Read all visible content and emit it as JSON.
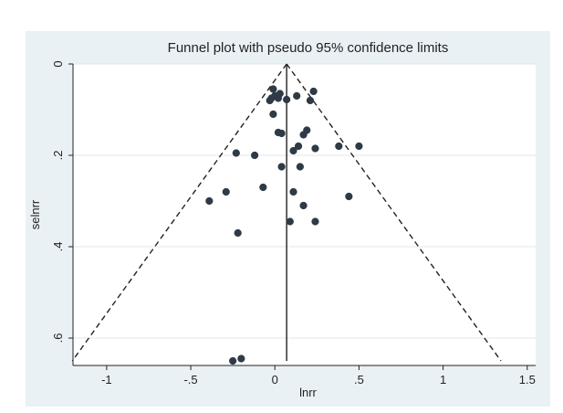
{
  "chart_data": {
    "type": "scatter",
    "title": "Funnel plot with pseudo 95% confidence limits",
    "xlabel": "lnrr",
    "ylabel": "selnrr",
    "xlim": [
      -1.2,
      1.55
    ],
    "ylim": [
      0,
      0.66
    ],
    "y_reversed": true,
    "xticks": [
      -1,
      -0.5,
      0,
      0.5,
      1,
      1.5
    ],
    "xtick_labels": [
      "-1",
      "-.5",
      "0",
      ".5",
      "1",
      "1.5"
    ],
    "yticks": [
      0,
      0.2,
      0.4,
      0.6
    ],
    "ytick_labels": [
      "0",
      ".2",
      ".4",
      ".6"
    ],
    "grid": "horizontal",
    "pooled_effect": 0.07,
    "confidence_level": 0.95,
    "funnel_max_se": 0.65,
    "points": [
      {
        "x": 0.23,
        "y": 0.06
      },
      {
        "x": -0.01,
        "y": 0.055
      },
      {
        "x": 0.03,
        "y": 0.065
      },
      {
        "x": 0.0,
        "y": 0.07
      },
      {
        "x": -0.02,
        "y": 0.075
      },
      {
        "x": -0.03,
        "y": 0.08
      },
      {
        "x": 0.02,
        "y": 0.075
      },
      {
        "x": 0.07,
        "y": 0.078
      },
      {
        "x": 0.13,
        "y": 0.07
      },
      {
        "x": 0.21,
        "y": 0.08
      },
      {
        "x": -0.01,
        "y": 0.11
      },
      {
        "x": 0.19,
        "y": 0.145
      },
      {
        "x": 0.17,
        "y": 0.155
      },
      {
        "x": 0.02,
        "y": 0.15
      },
      {
        "x": 0.04,
        "y": 0.152
      },
      {
        "x": 0.38,
        "y": 0.18
      },
      {
        "x": 0.5,
        "y": 0.18
      },
      {
        "x": 0.14,
        "y": 0.18
      },
      {
        "x": 0.11,
        "y": 0.19
      },
      {
        "x": 0.24,
        "y": 0.185
      },
      {
        "x": -0.23,
        "y": 0.195
      },
      {
        "x": -0.12,
        "y": 0.2
      },
      {
        "x": 0.04,
        "y": 0.225
      },
      {
        "x": 0.15,
        "y": 0.225
      },
      {
        "x": -0.07,
        "y": 0.27
      },
      {
        "x": -0.29,
        "y": 0.28
      },
      {
        "x": 0.11,
        "y": 0.28
      },
      {
        "x": 0.44,
        "y": 0.29
      },
      {
        "x": -0.39,
        "y": 0.3
      },
      {
        "x": 0.17,
        "y": 0.31
      },
      {
        "x": 0.09,
        "y": 0.345
      },
      {
        "x": 0.24,
        "y": 0.345
      },
      {
        "x": -0.22,
        "y": 0.37
      },
      {
        "x": -0.25,
        "y": 0.65
      },
      {
        "x": -0.2,
        "y": 0.645
      }
    ],
    "colors": {
      "page_background": "#ffffff",
      "outer_panel": "#eaf1f5",
      "plot_background": "#ffffff",
      "points": "#2f3a46",
      "lines": "#222222",
      "grid": "#dfe7ed"
    }
  }
}
